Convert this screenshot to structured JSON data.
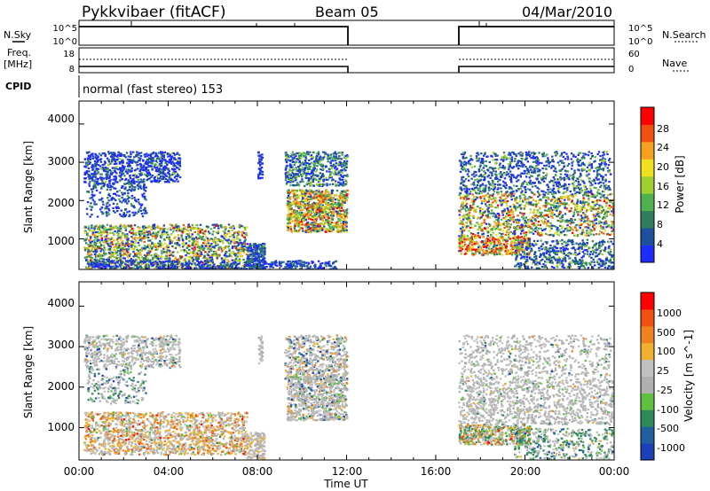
{
  "header": {
    "station": "Pykkvibaer (fitACF)",
    "beam": "Beam 05",
    "date": "04/Mar/2010"
  },
  "strip_labels": {
    "nsky": "N.Sky",
    "nsearch": "N.Search",
    "freq_top": "Freq.",
    "freq_unit": "[MHz]",
    "nave": "Nave",
    "cpid": "CPID",
    "cpid_value": "normal (fast stereo) 153"
  },
  "noise_axis": {
    "left_ticks": [
      "10^5",
      "10^0"
    ],
    "right_ticks": [
      "10^5",
      "10^0"
    ]
  },
  "freq_axis": {
    "left_ticks": [
      "18",
      "8"
    ],
    "right_ticks": [
      "60",
      "0"
    ]
  },
  "chart_data": [
    {
      "type": "heatmap",
      "panel": "power",
      "ylabel": "Slant Range [km]",
      "yticks": [
        "4000",
        "3000",
        "2000",
        "1000"
      ],
      "ylim": [
        200,
        4600
      ],
      "colorbar_label": "Power [dB]",
      "colorbar_ticks": [
        "28",
        "24",
        "20",
        "16",
        "12",
        "8",
        "4"
      ],
      "colors": [
        "#1f2cff",
        "#1f4f9f",
        "#2f7f5f",
        "#4fb04f",
        "#a0d030",
        "#f0e020",
        "#f5a020",
        "#f05010",
        "#ff0000"
      ]
    },
    {
      "type": "heatmap",
      "panel": "velocity",
      "ylabel": "Slant Range [km]",
      "yticks": [
        "4000",
        "3000",
        "2000",
        "1000"
      ],
      "ylim": [
        200,
        4600
      ],
      "colorbar_label": "Velocity [m s^-1]",
      "colorbar_ticks": [
        "1000",
        "500",
        "100",
        "25",
        "-25",
        "-100",
        "-500",
        "-1000"
      ],
      "colors": [
        "#1d3fb8",
        "#2060a0",
        "#2f8a5a",
        "#60c040",
        "#b0b0b0",
        "#c0c0c0",
        "#f0b030",
        "#f08020",
        "#f05010",
        "#ff0000"
      ]
    }
  ],
  "x_axis": {
    "label": "Time UT",
    "ticks": [
      "00:00",
      "04:00",
      "08:00",
      "12:00",
      "16:00",
      "20:00",
      "00:00"
    ]
  }
}
